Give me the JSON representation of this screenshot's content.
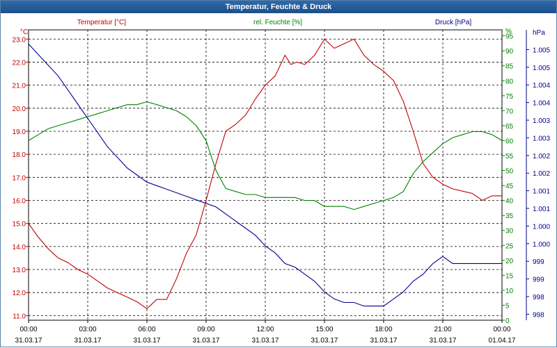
{
  "window": {
    "title": "Temperatur, Feuchte & Druck"
  },
  "colors": {
    "temp": "#c00000",
    "hum": "#008000",
    "press": "#00008b",
    "titlebar": "#2a619e"
  },
  "chart_data": {
    "type": "line",
    "title": "Temperatur, Feuchte & Druck",
    "x_labels": [
      {
        "time": "00:00",
        "date": "31.03.17"
      },
      {
        "time": "03:00",
        "date": "31.03.17"
      },
      {
        "time": "06:00",
        "date": "31.03.17"
      },
      {
        "time": "09:00",
        "date": "31.03.17"
      },
      {
        "time": "12:00",
        "date": "31.03.17"
      },
      {
        "time": "15:00",
        "date": "31.03.17"
      },
      {
        "time": "18:00",
        "date": "31.03.17"
      },
      {
        "time": "21:00",
        "date": "31.03.17"
      },
      {
        "time": "00:00",
        "date": "01.04.17"
      }
    ],
    "x_range_hours": [
      0,
      24
    ],
    "grid": true,
    "axes": {
      "temp": {
        "unit": "°C",
        "label": "Temperatur [°C]",
        "ylim": [
          10.8,
          23.4
        ],
        "ticks": [
          "23.0",
          "22.0",
          "21.0",
          "20.0",
          "19.0",
          "18.0",
          "17.0",
          "16.0",
          "15.0",
          "14.0",
          "13.0",
          "12.0",
          "11.0"
        ]
      },
      "hum": {
        "unit": "%",
        "label": "rel. Feuchte [%]",
        "ylim": [
          0,
          97
        ],
        "ticks": [
          "%",
          "95",
          "90",
          "85",
          "80",
          "75",
          "70",
          "65",
          "60",
          "55",
          "50",
          "45",
          "40",
          "35",
          "30",
          "25",
          "20",
          "15",
          "10",
          "5",
          "0"
        ]
      },
      "press": {
        "unit": "hPa",
        "label": "Druck [hPa]",
        "ylim": [
          997.7,
          1005.9
        ],
        "ticks": [
          "hPa",
          "1.005",
          "1.005",
          "1.004",
          "1.004",
          "1.003",
          "1.003",
          "1.002",
          "1.002",
          "1.001",
          "1.001",
          "1.000",
          "1.000",
          "999",
          "999",
          "998",
          "998"
        ]
      }
    },
    "series": [
      {
        "name": "Temperatur [°C]",
        "axis": "temp",
        "x": [
          0,
          0.5,
          1,
          1.5,
          2,
          2.5,
          3,
          3.5,
          4,
          4.5,
          5,
          5.5,
          6,
          6.5,
          7,
          7.5,
          8,
          8.5,
          9,
          9.5,
          10,
          10.5,
          11,
          11.5,
          12,
          12.5,
          13,
          13.3,
          13.6,
          14,
          14.5,
          15,
          15.5,
          16,
          16.5,
          17,
          17.5,
          18,
          18.5,
          19,
          19.5,
          20,
          20.5,
          21,
          21.5,
          22,
          22.5,
          23,
          23.5,
          24
        ],
        "values": [
          15.0,
          14.4,
          13.9,
          13.5,
          13.3,
          13.0,
          12.8,
          12.5,
          12.2,
          12.0,
          11.8,
          11.6,
          11.3,
          11.7,
          11.7,
          12.6,
          13.7,
          14.5,
          16.0,
          17.6,
          19.0,
          19.3,
          19.7,
          20.4,
          21.0,
          21.4,
          22.3,
          21.9,
          22.0,
          21.9,
          22.3,
          23.0,
          22.6,
          22.8,
          23.0,
          22.3,
          21.9,
          21.6,
          21.2,
          20.3,
          19.0,
          17.6,
          17.0,
          16.7,
          16.5,
          16.4,
          16.3,
          16.0,
          16.2,
          16.2
        ]
      },
      {
        "name": "rel. Feuchte [%]",
        "axis": "hum",
        "x": [
          0,
          0.5,
          1,
          1.5,
          2,
          2.5,
          3,
          3.5,
          4,
          4.5,
          5,
          5.5,
          6,
          6.5,
          7,
          7.5,
          8,
          8.5,
          9,
          9.5,
          10,
          10.5,
          11,
          11.5,
          12,
          12.5,
          13,
          13.5,
          14,
          14.5,
          15,
          15.5,
          16,
          16.5,
          17,
          17.5,
          18,
          18.5,
          19,
          19.5,
          20,
          20.5,
          21,
          21.5,
          22,
          22.5,
          23,
          23.5,
          24
        ],
        "values": [
          60,
          62,
          64,
          65,
          66,
          67,
          68,
          69,
          70,
          71,
          72,
          72,
          73,
          72,
          71,
          70,
          68,
          65,
          60,
          50,
          44,
          43,
          42,
          42,
          41,
          41,
          41,
          41,
          40,
          40,
          38,
          38,
          38,
          37,
          38,
          39,
          40,
          41,
          43,
          49,
          53,
          56,
          59,
          61,
          62,
          63,
          63,
          62,
          60
        ]
      },
      {
        "name": "Druck [hPa]",
        "axis": "press",
        "x": [
          0,
          0.5,
          1,
          1.5,
          2,
          2.5,
          3,
          3.5,
          4,
          4.5,
          5,
          5.5,
          6,
          6.5,
          7,
          7.5,
          8,
          8.5,
          9,
          9.5,
          10,
          10.5,
          11,
          11.5,
          12,
          12.5,
          13,
          13.5,
          14,
          14.5,
          15,
          15.5,
          16,
          16.5,
          17,
          17.5,
          18,
          18.5,
          19,
          19.5,
          20,
          20.5,
          21,
          21.5,
          22,
          22.5,
          23,
          23.5,
          24
        ],
        "values": [
          1005.5,
          1005.2,
          1004.9,
          1004.6,
          1004.2,
          1003.8,
          1003.4,
          1003.0,
          1002.6,
          1002.3,
          1002.0,
          1001.8,
          1001.6,
          1001.5,
          1001.4,
          1001.3,
          1001.2,
          1001.1,
          1001.0,
          1000.9,
          1000.7,
          1000.5,
          1000.3,
          1000.1,
          999.8,
          999.6,
          999.3,
          999.2,
          999.0,
          998.8,
          998.5,
          998.3,
          998.2,
          998.2,
          998.1,
          998.1,
          998.1,
          998.3,
          998.5,
          998.8,
          999.0,
          999.3,
          999.5,
          999.3,
          999.3,
          999.3,
          999.3,
          999.3,
          999.3
        ]
      }
    ]
  }
}
